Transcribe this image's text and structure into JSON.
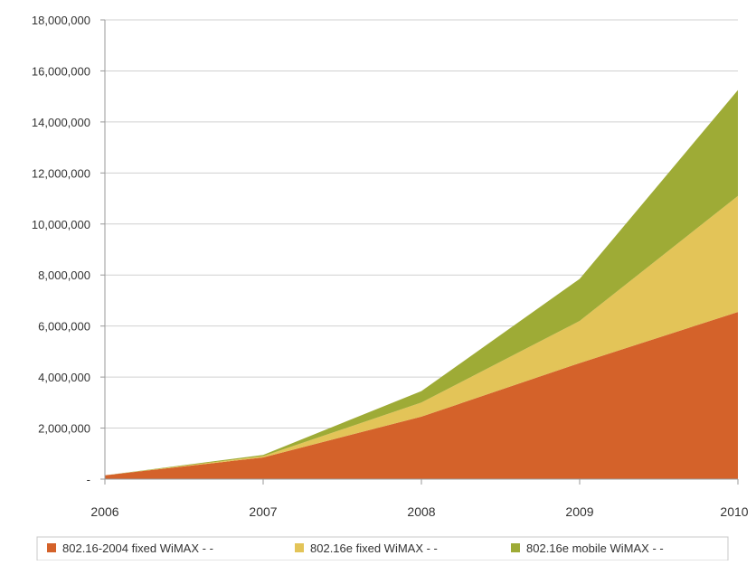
{
  "chart_data": {
    "type": "area",
    "stacked": true,
    "x": [
      "2006",
      "2007",
      "2008",
      "2009",
      "2010"
    ],
    "ylim": [
      0,
      18000000
    ],
    "yticks": [
      "-",
      "2,000,000",
      "4,000,000",
      "6,000,000",
      "8,000,000",
      "10,000,000",
      "12,000,000",
      "14,000,000",
      "16,000,000",
      "18,000,000"
    ],
    "grid": true,
    "legend_position": "bottom",
    "series": [
      {
        "name": "802.16-2004 fixed WiMAX - -",
        "values": [
          150000,
          850000,
          2450000,
          4550000,
          6550000
        ],
        "color": "#D4622A"
      },
      {
        "name": "802.16e fixed WiMAX - -",
        "values": [
          0,
          50000,
          550000,
          1650000,
          4550000
        ],
        "color": "#E3C458"
      },
      {
        "name": "802.16e mobile WiMAX - -",
        "values": [
          0,
          50000,
          450000,
          1650000,
          4150000
        ],
        "color": "#9EAB36"
      }
    ]
  }
}
